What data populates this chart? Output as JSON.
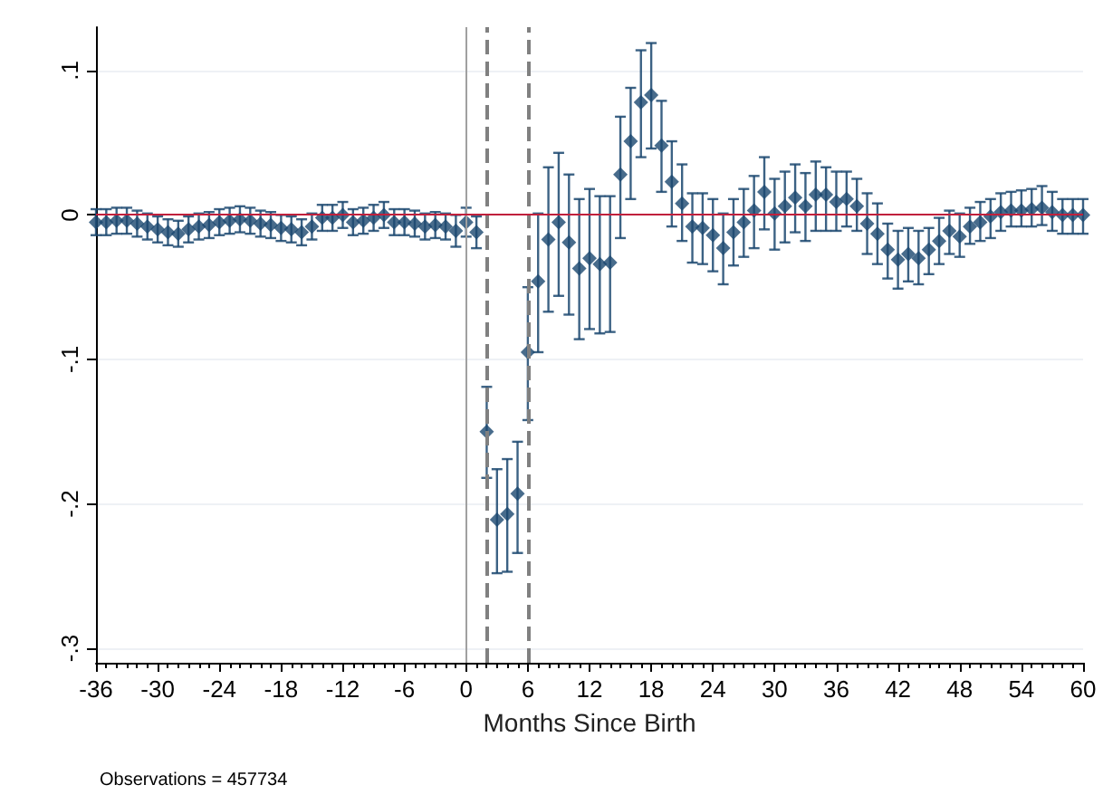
{
  "chart_data": {
    "type": "scatter",
    "xlabel": "Months Since Birth",
    "annotations": [
      "Observations = 457734"
    ],
    "x": [
      -36,
      -35,
      -34,
      -33,
      -32,
      -31,
      -30,
      -29,
      -28,
      -27,
      -26,
      -25,
      -24,
      -23,
      -22,
      -21,
      -20,
      -19,
      -18,
      -17,
      -16,
      -15,
      -14,
      -13,
      -12,
      -11,
      -10,
      -9,
      -8,
      -7,
      -6,
      -5,
      -4,
      -3,
      -2,
      -1,
      0,
      1,
      2,
      3,
      4,
      5,
      6,
      7,
      8,
      9,
      10,
      11,
      12,
      13,
      14,
      15,
      16,
      17,
      18,
      19,
      20,
      21,
      22,
      23,
      24,
      25,
      26,
      27,
      28,
      29,
      30,
      31,
      32,
      33,
      34,
      35,
      36,
      37,
      38,
      39,
      40,
      41,
      42,
      43,
      44,
      45,
      46,
      47,
      48,
      49,
      50,
      51,
      52,
      53,
      54,
      55,
      56,
      57,
      58,
      59,
      60
    ],
    "series": [
      {
        "color": "#1a476f",
        "values": [
          -0.005,
          -0.005,
          -0.004,
          -0.004,
          -0.006,
          -0.008,
          -0.01,
          -0.012,
          -0.013,
          -0.01,
          -0.008,
          -0.007,
          -0.005,
          -0.004,
          -0.003,
          -0.004,
          -0.006,
          -0.007,
          -0.009,
          -0.01,
          -0.012,
          -0.008,
          -0.002,
          -0.002,
          0,
          -0.005,
          -0.004,
          -0.002,
          0,
          -0.005,
          -0.005,
          -0.006,
          -0.008,
          -0.007,
          -0.008,
          -0.011,
          -0.005,
          -0.012,
          -0.15,
          -0.211,
          -0.207,
          -0.193,
          -0.095,
          -0.046,
          -0.017,
          -0.005,
          -0.019,
          -0.037,
          -0.03,
          -0.034,
          -0.033,
          0.028,
          0.051,
          0.078,
          0.083,
          0.048,
          0.023,
          0.008,
          -0.008,
          -0.009,
          -0.014,
          -0.023,
          -0.012,
          -0.005,
          0.003,
          0.016,
          0.001,
          0.006,
          0.012,
          0.006,
          0.014,
          0.014,
          0.009,
          0.011,
          0.006,
          -0.006,
          -0.013,
          -0.024,
          -0.031,
          -0.027,
          -0.03,
          -0.024,
          -0.018,
          -0.011,
          -0.015,
          -0.008,
          -0.005,
          -0.001,
          0.002,
          0.003,
          0.003,
          0.004,
          0.005,
          0.002,
          0,
          0,
          0
        ],
        "errors": [
          0.009,
          0.009,
          0.009,
          0.009,
          0.009,
          0.009,
          0.009,
          0.009,
          0.009,
          0.009,
          0.009,
          0.009,
          0.009,
          0.009,
          0.009,
          0.009,
          0.009,
          0.009,
          0.009,
          0.009,
          0.009,
          0.009,
          0.009,
          0.009,
          0.009,
          0.009,
          0.009,
          0.009,
          0.009,
          0.009,
          0.009,
          0.009,
          0.009,
          0.009,
          0.009,
          0.011,
          0.01,
          0.011,
          [
            -0.182,
            -0.119
          ],
          [
            -0.248,
            -0.176
          ],
          [
            -0.247,
            -0.169
          ],
          [
            -0.234,
            -0.157
          ],
          [
            -0.142,
            -0.05
          ],
          [
            -0.095,
            0.001
          ],
          [
            -0.067,
            0.033
          ],
          [
            -0.056,
            0.043
          ],
          [
            -0.069,
            0.028
          ],
          [
            -0.086,
            0.011
          ],
          [
            -0.079,
            0.018
          ],
          [
            -0.082,
            0.013
          ],
          [
            -0.081,
            0.013
          ],
          [
            -0.016,
            0.068
          ],
          [
            0.011,
            0.088
          ],
          [
            0.04,
            0.114
          ],
          [
            0.046,
            0.119
          ],
          [
            0.016,
            0.079
          ],
          [
            -0.008,
            0.051
          ],
          [
            -0.018,
            0.035
          ],
          [
            -0.033,
            0.015
          ],
          [
            -0.034,
            0.015
          ],
          [
            -0.039,
            0.011
          ],
          [
            -0.048,
            0.001
          ],
          [
            -0.035,
            0.011
          ],
          [
            -0.029,
            0.018
          ],
          [
            -0.023,
            0.027
          ],
          [
            -0.01,
            0.04
          ],
          [
            -0.024,
            0.025
          ],
          [
            -0.019,
            0.03
          ],
          [
            -0.012,
            0.035
          ],
          [
            -0.018,
            0.029
          ],
          [
            -0.011,
            0.037
          ],
          [
            -0.011,
            0.033
          ],
          [
            -0.011,
            0.03
          ],
          [
            -0.008,
            0.03
          ],
          [
            -0.011,
            0.025
          ],
          [
            -0.027,
            0.015
          ],
          [
            -0.034,
            0.008
          ],
          [
            -0.044,
            -0.006
          ],
          [
            -0.051,
            -0.011
          ],
          [
            -0.046,
            -0.009
          ],
          [
            -0.048,
            -0.011
          ],
          [
            -0.041,
            -0.009
          ],
          [
            -0.034,
            -0.002
          ],
          [
            -0.027,
            0.003
          ],
          [
            -0.029,
            0.001
          ],
          [
            -0.02,
            0.005
          ],
          [
            -0.018,
            0.009
          ],
          [
            -0.016,
            0.011
          ],
          [
            -0.011,
            0.015
          ],
          [
            -0.008,
            0.016
          ],
          [
            -0.008,
            0.017
          ],
          [
            -0.008,
            0.018
          ],
          [
            -0.007,
            0.02
          ],
          [
            -0.011,
            0.016
          ],
          [
            -0.013,
            0.011
          ],
          [
            -0.013,
            0.011
          ],
          [
            -0.013,
            0.011
          ]
        ]
      }
    ],
    "xlim": [
      -36,
      60
    ],
    "xticks": [
      -36,
      -30,
      -24,
      -18,
      -12,
      -6,
      0,
      6,
      12,
      18,
      24,
      30,
      36,
      42,
      48,
      54,
      60
    ],
    "ylim": [
      -0.31,
      0.13
    ],
    "yticks": [
      {
        "value": 0.1,
        "label": ".1"
      },
      {
        "value": 0,
        "label": "0"
      },
      {
        "value": -0.1,
        "label": "-.1"
      },
      {
        "value": -0.2,
        "label": "-.2"
      },
      {
        "value": -0.3,
        "label": "-.3"
      }
    ],
    "ref_lines": [
      {
        "axis": "x",
        "value": 0,
        "color": "#a0a0a0",
        "line_style": "solid"
      },
      {
        "axis": "x",
        "value": 2,
        "color": "#808080",
        "line_style": "dashed"
      },
      {
        "axis": "x",
        "value": 6,
        "color": "#808080",
        "line_style": "dashed"
      },
      {
        "axis": "y",
        "value": 0,
        "color": "#c0203c",
        "line_style": "solid"
      }
    ],
    "grid": "y",
    "marker": "diamond"
  }
}
